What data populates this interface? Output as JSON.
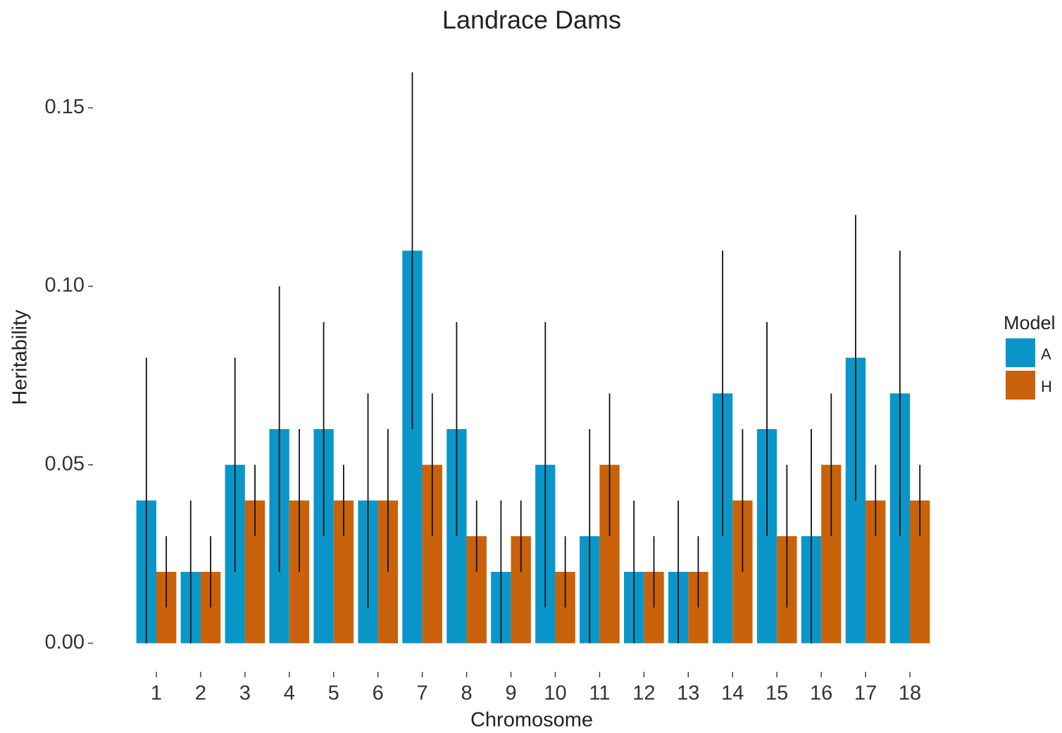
{
  "chart_data": {
    "type": "bar",
    "title": "Landrace Dams",
    "x_label": "Chromosome",
    "y_label": "Heritability",
    "legend_title": "Model",
    "legend_position": "right",
    "categories": [
      "1",
      "2",
      "3",
      "4",
      "5",
      "6",
      "7",
      "8",
      "9",
      "10",
      "11",
      "12",
      "13",
      "14",
      "15",
      "16",
      "17",
      "18"
    ],
    "series": [
      {
        "name": "A",
        "color": "#0a96c8",
        "values": [
          0.04,
          0.02,
          0.05,
          0.06,
          0.06,
          0.04,
          0.11,
          0.06,
          0.02,
          0.05,
          0.03,
          0.02,
          0.02,
          0.07,
          0.06,
          0.03,
          0.08,
          0.07
        ],
        "lower": [
          0,
          0,
          0.02,
          0.02,
          0.03,
          0.01,
          0.06,
          0.03,
          0,
          0.01,
          0,
          0,
          0,
          0.03,
          0.03,
          0,
          0.04,
          0.03
        ],
        "upper": [
          0.08,
          0.04,
          0.08,
          0.1,
          0.09,
          0.07,
          0.16,
          0.09,
          0.04,
          0.09,
          0.06,
          0.04,
          0.04,
          0.11,
          0.09,
          0.06,
          0.12,
          0.11
        ]
      },
      {
        "name": "H",
        "color": "#c9620a",
        "values": [
          0.02,
          0.02,
          0.04,
          0.04,
          0.04,
          0.04,
          0.05,
          0.03,
          0.03,
          0.02,
          0.05,
          0.02,
          0.02,
          0.04,
          0.03,
          0.05,
          0.04,
          0.04
        ],
        "lower": [
          0.01,
          0.01,
          0.03,
          0.02,
          0.03,
          0.02,
          0.03,
          0.02,
          0.02,
          0.01,
          0.03,
          0.01,
          0.01,
          0.02,
          0.01,
          0.03,
          0.03,
          0.03
        ],
        "upper": [
          0.03,
          0.03,
          0.05,
          0.06,
          0.05,
          0.06,
          0.07,
          0.04,
          0.04,
          0.03,
          0.07,
          0.03,
          0.03,
          0.06,
          0.05,
          0.07,
          0.05,
          0.05
        ]
      }
    ],
    "ylim": [
      -0.008,
      0.168
    ],
    "yticks": [
      {
        "value": 0,
        "label": "0.00"
      },
      0.05,
      {
        "value": 0.1,
        "label": "0.10"
      },
      0.15
    ],
    "grid": false
  }
}
